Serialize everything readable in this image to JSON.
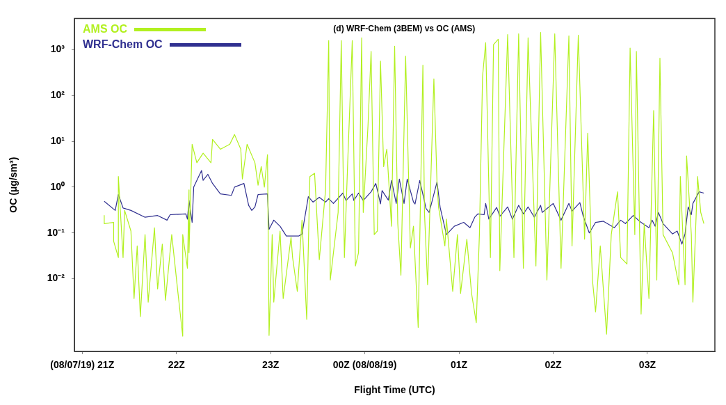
{
  "chart_data": {
    "type": "line",
    "title": "(d) WRF-Chem (3BEM) vs OC (AMS)",
    "xlabel": "Flight Time (UTC)",
    "ylabel": "OC (μg/sm³)",
    "log": "y",
    "grid": false,
    "legend": "top left",
    "marker": "none",
    "line_style": "solid",
    "xlim": [
      "--08-07T20:55",
      "--08-08T03:43"
    ],
    "xticks": [
      {
        "value": "--08-07T21:00",
        "label": "(08/07/19) 21Z"
      },
      {
        "value": "--08-07T22:00",
        "label": "22Z"
      },
      {
        "value": "--08-07T23:00",
        "label": "23Z"
      },
      {
        "value": "--08-08T00:00",
        "label": "00Z (08/08/19)"
      },
      {
        "value": "--08-08T01:00",
        "label": "01Z"
      },
      {
        "value": "--08-08T02:00",
        "label": "02Z"
      },
      {
        "value": "--08-08T03:00",
        "label": "03Z"
      }
    ],
    "ylim": [
      0.00026,
      4800
    ],
    "yticks": [
      {
        "value": 0.01,
        "label": "10⁻²"
      },
      {
        "value": 0.1,
        "label": "10⁻¹"
      },
      {
        "value": 1,
        "label": "10⁰"
      },
      {
        "value": 10,
        "label": "10¹"
      },
      {
        "value": 100,
        "label": "10²"
      },
      {
        "value": 1000,
        "label": "10³"
      }
    ],
    "series": [
      {
        "name": "AMS OC",
        "color": "#b2f020",
        "x": [
          "--08-07T21:14",
          "--08-07T21:14",
          "--08-07T21:20",
          "--08-07T21:20",
          "--08-07T21:23",
          "--08-07T21:23",
          "--08-07T21:26",
          "--08-07T21:27",
          "--08-07T21:31",
          "--08-07T21:33",
          "--08-07T21:35",
          "--08-07T21:37",
          "--08-07T21:40",
          "--08-07T21:42",
          "--08-07T21:46",
          "--08-07T21:48",
          "--08-07T21:51",
          "--08-07T21:53",
          "--08-07T21:57",
          "--08-07T22:01",
          "--08-07T22:04",
          "--08-07T22:04",
          "--08-07T22:07",
          "--08-07T22:08",
          "--08-07T22:08",
          "--08-07T22:10",
          "--08-07T22:13",
          "--08-07T22:17",
          "--08-07T22:22",
          "--08-07T22:23",
          "--08-07T22:28",
          "--08-07T22:34",
          "--08-07T22:37",
          "--08-07T22:41",
          "--08-07T22:42",
          "--08-07T22:45",
          "--08-07T22:50",
          "--08-07T22:52",
          "--08-07T22:54",
          "--08-07T22:56",
          "--08-07T22:58",
          "--08-07T22:59",
          "--08-07T23:01",
          "--08-07T23:02",
          "--08-07T23:06",
          "--08-07T23:08",
          "--08-07T23:13",
          "--08-07T23:14",
          "--08-07T23:17",
          "--08-07T23:20",
          "--08-07T23:23",
          "--08-07T23:25",
          "--08-07T23:28",
          "--08-07T23:31",
          "--08-07T23:35",
          "--08-07T23:37",
          "--08-07T23:38",
          "--08-07T23:43",
          "--08-07T23:45",
          "--08-07T23:47",
          "--08-07T23:49",
          "--08-07T23:52",
          "--08-07T23:54",
          "--08-07T23:56",
          "--08-07T23:58",
          "--08-07T23:59",
          "--08-08T00:02",
          "--08-08T00:04",
          "--08-08T00:06",
          "--08-08T00:08",
          "--08-08T00:10",
          "--08-08T00:12",
          "--08-08T00:14",
          "--08-08T00:17",
          "--08-08T00:19",
          "--08-08T00:21",
          "--08-08T00:23",
          "--08-08T00:26",
          "--08-08T00:29",
          "--08-08T00:31",
          "--08-08T00:34",
          "--08-08T00:37",
          "--08-08T00:38",
          "--08-08T00:40",
          "--08-08T00:44",
          "--08-08T00:46",
          "--08-08T00:47",
          "--08-08T00:51",
          "--08-08T00:52",
          "--08-08T00:56",
          "--08-08T00:59",
          "--08-08T01:01",
          "--08-08T01:05",
          "--08-08T01:08",
          "--08-08T01:11",
          "--08-08T01:13",
          "--08-08T01:15",
          "--08-08T01:17",
          "--08-08T01:20",
          "--08-08T01:22",
          "--08-08T01:25",
          "--08-08T01:26",
          "--08-08T01:31",
          "--08-08T01:35",
          "--08-08T01:38",
          "--08-08T01:41",
          "--08-08T01:44",
          "--08-08T01:49",
          "--08-08T01:52",
          "--08-08T01:56",
          "--08-08T02:01",
          "--08-08T02:05",
          "--08-08T02:10",
          "--08-08T02:12",
          "--08-08T02:16",
          "--08-08T02:20",
          "--08-08T02:22",
          "--08-08T02:25",
          "--08-08T02:27",
          "--08-08T02:30",
          "--08-08T02:34",
          "--08-08T02:37",
          "--08-08T02:41",
          "--08-08T02:43",
          "--08-08T02:47",
          "--08-08T02:49",
          "--08-08T02:52",
          "--08-08T02:53",
          "--08-08T02:56",
          "--08-08T02:58",
          "--08-08T03:01",
          "--08-08T03:04",
          "--08-08T03:06",
          "--08-08T03:08",
          "--08-08T03:10",
          "--08-08T03:16",
          "--08-08T03:20",
          "--08-08T03:21",
          "--08-08T03:24",
          "--08-08T03:25",
          "--08-08T03:28",
          "--08-08T03:29",
          "--08-08T03:32",
          "--08-08T03:34",
          "--08-08T03:36"
        ],
        "values": [
          0.24,
          0.16,
          0.17,
          0.066,
          0.029,
          1.7,
          0.029,
          0.31,
          0.11,
          0.0037,
          0.052,
          0.0015,
          0.092,
          0.0031,
          0.13,
          0.006,
          0.057,
          0.0034,
          0.092,
          0.0048,
          0.00056,
          0.092,
          0.017,
          0.87,
          0.037,
          8.6,
          3.4,
          5.5,
          3.4,
          11,
          6.7,
          8.6,
          14,
          6.7,
          1.5,
          8.6,
          3.4,
          1.1,
          2.8,
          1.0,
          5.1,
          0.00058,
          0.092,
          0.0031,
          0.11,
          0.0037,
          0.08,
          0.029,
          0.0053,
          0.19,
          0.0013,
          1.7,
          2.0,
          0.026,
          0.87,
          1570,
          0.0094,
          0.28,
          1570,
          0.029,
          2.8,
          1570,
          0.019,
          0.037,
          1800,
          0.28,
          21,
          910,
          0.092,
          0.11,
          560,
          2.8,
          6.7,
          0.14,
          1190,
          0.16,
          0.012,
          720,
          0.047,
          0.14,
          0.00087,
          460,
          0.28,
          0.0074,
          230,
          1.2,
          0.36,
          0.052,
          0.2,
          0.0053,
          0.092,
          0.0048,
          0.073,
          0.0048,
          0.0011,
          0.092,
          260,
          1420,
          0.029,
          1280,
          1680,
          0.015,
          2130,
          0.029,
          2200,
          0.017,
          1800,
          0.019,
          2360,
          0.0094,
          2200,
          0.017,
          1990,
          0.052,
          2060,
          0.073,
          15,
          0.0094,
          0.0019,
          0.052,
          0.00062,
          0.092,
          0.79,
          0.029,
          0.021,
          1080,
          0.092,
          910,
          0.0017,
          0.16,
          0.0037,
          47,
          0.0094,
          650,
          0.092,
          0.037,
          0.0074,
          1.7,
          0.0074,
          4.8,
          0.092,
          0.0031,
          1.7,
          0.28,
          0.16
        ]
      },
      {
        "name": "WRF-Chem OC",
        "color": "#303090",
        "x": [
          "--08-07T21:14",
          "--08-07T21:21",
          "--08-07T21:23",
          "--08-07T21:26",
          "--08-07T21:31",
          "--08-07T21:40",
          "--08-07T21:48",
          "--08-07T21:54",
          "--08-07T21:56",
          "--08-07T22:06",
          "--08-07T22:07",
          "--08-07T22:08",
          "--08-07T22:10",
          "--08-07T22:11",
          "--08-07T22:13",
          "--08-07T22:16",
          "--08-07T22:17",
          "--08-07T22:20",
          "--08-07T22:23",
          "--08-07T22:28",
          "--08-07T22:35",
          "--08-07T22:37",
          "--08-07T22:43",
          "--08-07T22:46",
          "--08-07T22:48",
          "--08-07T22:50",
          "--08-07T22:52",
          "--08-07T22:58",
          "--08-07T22:59",
          "--08-07T23:02",
          "--08-07T23:06",
          "--08-07T23:10",
          "--08-07T23:18",
          "--08-07T23:20",
          "--08-07T23:24",
          "--08-07T23:27",
          "--08-07T23:31",
          "--08-07T23:35",
          "--08-07T23:37",
          "--08-07T23:40",
          "--08-07T23:46",
          "--08-07T23:48",
          "--08-07T23:52",
          "--08-07T23:53",
          "--08-07T23:56",
          "--08-07T23:59",
          "--08-08T00:04",
          "--08-08T00:07",
          "--08-08T00:10",
          "--08-08T00:11",
          "--08-08T00:15",
          "--08-08T00:17",
          "--08-08T00:20",
          "--08-08T00:22",
          "--08-08T00:25",
          "--08-08T00:27",
          "--08-08T00:31",
          "--08-08T00:32",
          "--08-08T00:35",
          "--08-08T00:39",
          "--08-08T00:41",
          "--08-08T00:46",
          "--08-08T00:48",
          "--08-08T00:52",
          "--08-08T00:57",
          "--08-08T01:03",
          "--08-08T01:07",
          "--08-08T01:10",
          "--08-08T01:12",
          "--08-08T01:16",
          "--08-08T01:17",
          "--08-08T01:19",
          "--08-08T01:24",
          "--08-08T01:26",
          "--08-08T01:31",
          "--08-08T01:34",
          "--08-08T01:38",
          "--08-08T01:41",
          "--08-08T01:44",
          "--08-08T01:48",
          "--08-08T01:52",
          "--08-08T01:53",
          "--08-08T01:56",
          "--08-08T02:00",
          "--08-08T02:05",
          "--08-08T02:10",
          "--08-08T02:12",
          "--08-08T02:17",
          "--08-08T02:19",
          "--08-08T02:23",
          "--08-08T02:27",
          "--08-08T02:32",
          "--08-08T02:39",
          "--08-08T02:43",
          "--08-08T02:46",
          "--08-08T02:51",
          "--08-08T02:55",
          "--08-08T03:01",
          "--08-08T03:03",
          "--08-08T03:05",
          "--08-08T03:07",
          "--08-08T03:10",
          "--08-08T03:16",
          "--08-08T03:19",
          "--08-08T03:22",
          "--08-08T03:24",
          "--08-08T03:26",
          "--08-08T03:28",
          "--08-08T03:29",
          "--08-08T03:33",
          "--08-08T03:36"
        ],
        "values": [
          0.49,
          0.31,
          0.69,
          0.35,
          0.31,
          0.22,
          0.24,
          0.19,
          0.25,
          0.26,
          0.2,
          0.51,
          0.17,
          1.0,
          1.4,
          2.3,
          1.4,
          1.9,
          1.2,
          0.71,
          0.66,
          1.0,
          1.2,
          0.4,
          0.31,
          0.37,
          0.69,
          0.71,
          0.12,
          0.19,
          0.14,
          0.086,
          0.086,
          0.095,
          0.62,
          0.47,
          0.6,
          0.47,
          0.56,
          0.44,
          0.74,
          0.51,
          0.71,
          0.51,
          0.74,
          0.51,
          0.79,
          1.2,
          0.43,
          0.84,
          0.52,
          1.4,
          0.44,
          1.5,
          0.44,
          1.5,
          0.47,
          0.43,
          1.4,
          0.34,
          0.28,
          1.3,
          0.36,
          0.092,
          0.14,
          0.17,
          0.13,
          0.22,
          0.26,
          0.25,
          0.44,
          0.2,
          0.36,
          0.23,
          0.37,
          0.2,
          0.4,
          0.26,
          0.37,
          0.22,
          0.4,
          0.28,
          0.34,
          0.44,
          0.19,
          0.44,
          0.3,
          0.46,
          0.24,
          0.1,
          0.17,
          0.18,
          0.13,
          0.19,
          0.16,
          0.24,
          0.18,
          0.13,
          0.19,
          0.14,
          0.28,
          0.16,
          0.095,
          0.11,
          0.057,
          0.095,
          0.37,
          0.25,
          0.44,
          0.79,
          0.74
        ]
      }
    ]
  }
}
